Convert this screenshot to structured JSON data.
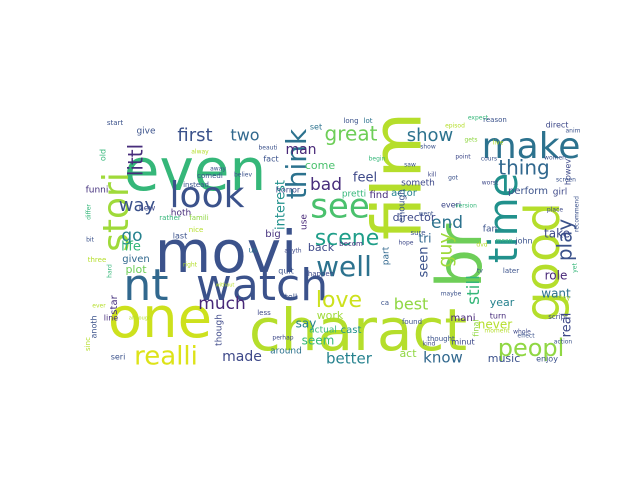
{
  "cloud": {
    "words": [
      {
        "text": "film",
        "color": "#b5de2b"
      },
      {
        "text": "charact",
        "color": "#b5de2b"
      },
      {
        "text": "movi",
        "color": "#3b528b"
      },
      {
        "text": "even",
        "color": "#35b779"
      },
      {
        "text": "one",
        "color": "#cde11d"
      },
      {
        "text": "br",
        "color": "#6ece58"
      },
      {
        "text": "nt",
        "color": "#31688e"
      },
      {
        "text": "watch",
        "color": "#3b528b"
      },
      {
        "text": "good",
        "color": "#b5de2b"
      },
      {
        "text": "time",
        "color": "#21918c"
      },
      {
        "text": "look",
        "color": "#3b528b"
      },
      {
        "text": "make",
        "color": "#2c728e"
      },
      {
        "text": "stori",
        "color": "#9fda3a"
      },
      {
        "text": "see",
        "color": "#4ac16d"
      },
      {
        "text": "well",
        "color": "#2c728e"
      },
      {
        "text": "realli",
        "color": "#dde318"
      },
      {
        "text": "peopl",
        "color": "#90d743"
      },
      {
        "text": "love",
        "color": "#cde11d"
      },
      {
        "text": "think",
        "color": "#2c728e"
      },
      {
        "text": "scene",
        "color": "#1f9e89"
      },
      {
        "text": "great",
        "color": "#6ece58"
      },
      {
        "text": "thing",
        "color": "#31688e"
      },
      {
        "text": "show",
        "color": "#2c728e"
      },
      {
        "text": "first",
        "color": "#3b528b"
      },
      {
        "text": "play",
        "color": "#3b528b"
      },
      {
        "text": "littl",
        "color": "#472d7b"
      },
      {
        "text": "way",
        "color": "#3b528b"
      },
      {
        "text": "much",
        "color": "#482878"
      },
      {
        "text": "bad",
        "color": "#472d7b"
      },
      {
        "text": "go",
        "color": "#26828e"
      },
      {
        "text": "two",
        "color": "#31688e"
      },
      {
        "text": "end",
        "color": "#2c728e"
      },
      {
        "text": "guy",
        "color": "#9fda3a"
      },
      {
        "text": "know",
        "color": "#31688e"
      },
      {
        "text": "best",
        "color": "#90d743"
      },
      {
        "text": "still",
        "color": "#35b779"
      },
      {
        "text": "made",
        "color": "#3e4989"
      },
      {
        "text": "better",
        "color": "#26828e"
      },
      {
        "text": "man",
        "color": "#482878"
      },
      {
        "text": "life",
        "color": "#35b779"
      },
      {
        "text": "seen",
        "color": "#3b528b"
      },
      {
        "text": "plot",
        "color": "#6ece58"
      },
      {
        "text": "never",
        "color": "#b5de2b"
      },
      {
        "text": "feel",
        "color": "#3e4989"
      },
      {
        "text": "interest",
        "color": "#21918c"
      },
      {
        "text": "tri",
        "color": "#31688e"
      },
      {
        "text": "director",
        "color": "#3e4989"
      },
      {
        "text": "want",
        "color": "#2c728e"
      },
      {
        "text": "say",
        "color": "#26828e"
      },
      {
        "text": "take",
        "color": "#3e4989"
      },
      {
        "text": "seem",
        "color": "#35b779"
      },
      {
        "text": "act",
        "color": "#90d743"
      },
      {
        "text": "music",
        "color": "#3b528b"
      },
      {
        "text": "work",
        "color": "#9fda3a"
      },
      {
        "text": "mani",
        "color": "#482878"
      },
      {
        "text": "year",
        "color": "#26828e"
      },
      {
        "text": "back",
        "color": "#3e4989"
      },
      {
        "text": "real",
        "color": "#3e4989"
      },
      {
        "text": "role",
        "color": "#482878"
      },
      {
        "text": "star",
        "color": "#46327e"
      },
      {
        "text": "actor",
        "color": "#26828e"
      },
      {
        "text": "come",
        "color": "#4ac16d"
      },
      {
        "text": "part",
        "color": "#31688e"
      },
      {
        "text": "cast",
        "color": "#21918c"
      },
      {
        "text": "actual",
        "color": "#35b779"
      },
      {
        "text": "given",
        "color": "#31688e"
      },
      {
        "text": "use",
        "color": "#482878"
      },
      {
        "text": "big",
        "color": "#46327e"
      },
      {
        "text": "find",
        "color": "#472d7b"
      },
      {
        "text": "enough",
        "color": "#3b528b"
      },
      {
        "text": "someth",
        "color": "#3e4989"
      },
      {
        "text": "pretti",
        "color": "#35b779"
      },
      {
        "text": "give",
        "color": "#3b528b"
      },
      {
        "text": "funni",
        "color": "#46327e"
      },
      {
        "text": "perform",
        "color": "#3b528b"
      },
      {
        "text": "girl",
        "color": "#3e4989"
      },
      {
        "text": "fan",
        "color": "#3b528b"
      },
      {
        "text": "set",
        "color": "#2c728e"
      },
      {
        "text": "everi",
        "color": "#3e4989"
      },
      {
        "text": "anoth",
        "color": "#3b528b"
      },
      {
        "text": "line",
        "color": "#472d7b"
      },
      {
        "text": "seri",
        "color": "#3b528b"
      },
      {
        "text": "though",
        "color": "#3e4989"
      },
      {
        "text": "around",
        "color": "#2c728e"
      },
      {
        "text": "quit",
        "color": "#3b528b"
      },
      {
        "text": "tell",
        "color": "#3b528b"
      },
      {
        "text": "new",
        "color": "#3e4989"
      },
      {
        "text": "minut",
        "color": "#3e4989"
      },
      {
        "text": "turn",
        "color": "#472d7b"
      },
      {
        "text": "enjoy",
        "color": "#3b528b"
      },
      {
        "text": "hoth",
        "color": "#472d7b"
      },
      {
        "text": "start",
        "color": "#3b528b"
      },
      {
        "text": "old",
        "color": "#35b779"
      },
      {
        "text": "last",
        "color": "#3b528b"
      },
      {
        "text": "horror",
        "color": "#3e4989"
      },
      {
        "text": "fact",
        "color": "#3b528b"
      },
      {
        "text": "john",
        "color": "#3b528b"
      },
      {
        "text": "howev",
        "color": "#3e4989"
      },
      {
        "text": "direct",
        "color": "#3e4989"
      },
      {
        "text": "reason",
        "color": "#3b528b"
      },
      {
        "text": "script",
        "color": "#3e4989"
      },
      {
        "text": "three",
        "color": "#b5de2b"
      },
      {
        "text": "famili",
        "color": "#90d743"
      },
      {
        "text": "rather",
        "color": "#35b779"
      },
      {
        "text": "instead",
        "color": "#3b528b"
      },
      {
        "text": "nice",
        "color": "#b5de2b"
      },
      {
        "text": "comedi",
        "color": "#3b528b"
      },
      {
        "text": "becom",
        "color": "#46327e"
      },
      {
        "text": "happen",
        "color": "#3e4989"
      },
      {
        "text": "less",
        "color": "#3e4989"
      },
      {
        "text": "final",
        "color": "#90d743"
      },
      {
        "text": "sure",
        "color": "#3b528b"
      },
      {
        "text": "long",
        "color": "#3b528b"
      },
      {
        "text": "lot",
        "color": "#2c728e"
      },
      {
        "text": "us",
        "color": "#2c728e"
      },
      {
        "text": "begin",
        "color": "#35b779"
      },
      {
        "text": "thought",
        "color": "#3b528b"
      },
      {
        "text": "found",
        "color": "#3b528b"
      },
      {
        "text": "moment",
        "color": "#b5de2b"
      },
      {
        "text": "later",
        "color": "#3b528b"
      },
      {
        "text": "day",
        "color": "#b5de2b"
      },
      {
        "text": "live",
        "color": "#b5de2b"
      },
      {
        "text": "kind",
        "color": "#3e4989"
      },
      {
        "text": "tv",
        "color": "#3b528b"
      },
      {
        "text": "maybe",
        "color": "#3b528b"
      },
      {
        "text": "mean",
        "color": "#35b779"
      },
      {
        "text": "kill",
        "color": "#3e4989"
      },
      {
        "text": "ca",
        "color": "#3b528b"
      },
      {
        "text": "gets",
        "color": "#90d743"
      },
      {
        "text": "went",
        "color": "#3b528b"
      },
      {
        "text": "sinc",
        "color": "#b5de2b"
      },
      {
        "text": "ever",
        "color": "#b5de2b"
      },
      {
        "text": "cours",
        "color": "#3b528b"
      },
      {
        "text": "whole",
        "color": "#3e4989"
      },
      {
        "text": "action",
        "color": "#3b528b"
      },
      {
        "text": "bit",
        "color": "#3b528b"
      },
      {
        "text": "differ",
        "color": "#35b779"
      },
      {
        "text": "show",
        "color": "#3b528b"
      },
      {
        "text": "anyth",
        "color": "#3e4989"
      },
      {
        "text": "episod",
        "color": "#b5de2b"
      },
      {
        "text": "women",
        "color": "#3b528b"
      },
      {
        "text": "place",
        "color": "#3e4989"
      },
      {
        "text": "yet",
        "color": "#35b779"
      },
      {
        "text": "recommend",
        "color": "#3b528b"
      },
      {
        "text": "worst",
        "color": "#3e4989"
      },
      {
        "text": "effect",
        "color": "#3b528b"
      },
      {
        "text": "right",
        "color": "#b5de2b"
      },
      {
        "text": "hard",
        "color": "#35b779"
      },
      {
        "text": "beauti",
        "color": "#3b528b"
      },
      {
        "text": "although",
        "color": "#b5de2b"
      },
      {
        "text": "without",
        "color": "#b5de2b"
      },
      {
        "text": "perhap",
        "color": "#3e4989"
      },
      {
        "text": "believ",
        "color": "#3b528b"
      },
      {
        "text": "screen",
        "color": "#3b528b"
      },
      {
        "text": "saw",
        "color": "#3b528b"
      },
      {
        "text": "away",
        "color": "#3b528b"
      },
      {
        "text": "alway",
        "color": "#b5de2b"
      },
      {
        "text": "hope",
        "color": "#3e4989"
      },
      {
        "text": "version",
        "color": "#35b779"
      },
      {
        "text": "dvd",
        "color": "#b5de2b"
      },
      {
        "text": "got",
        "color": "#3b528b"
      },
      {
        "text": "point",
        "color": "#3e4989"
      },
      {
        "text": "anim",
        "color": "#3b528b"
      },
      {
        "text": "expect",
        "color": "#35b779"
      }
    ]
  }
}
